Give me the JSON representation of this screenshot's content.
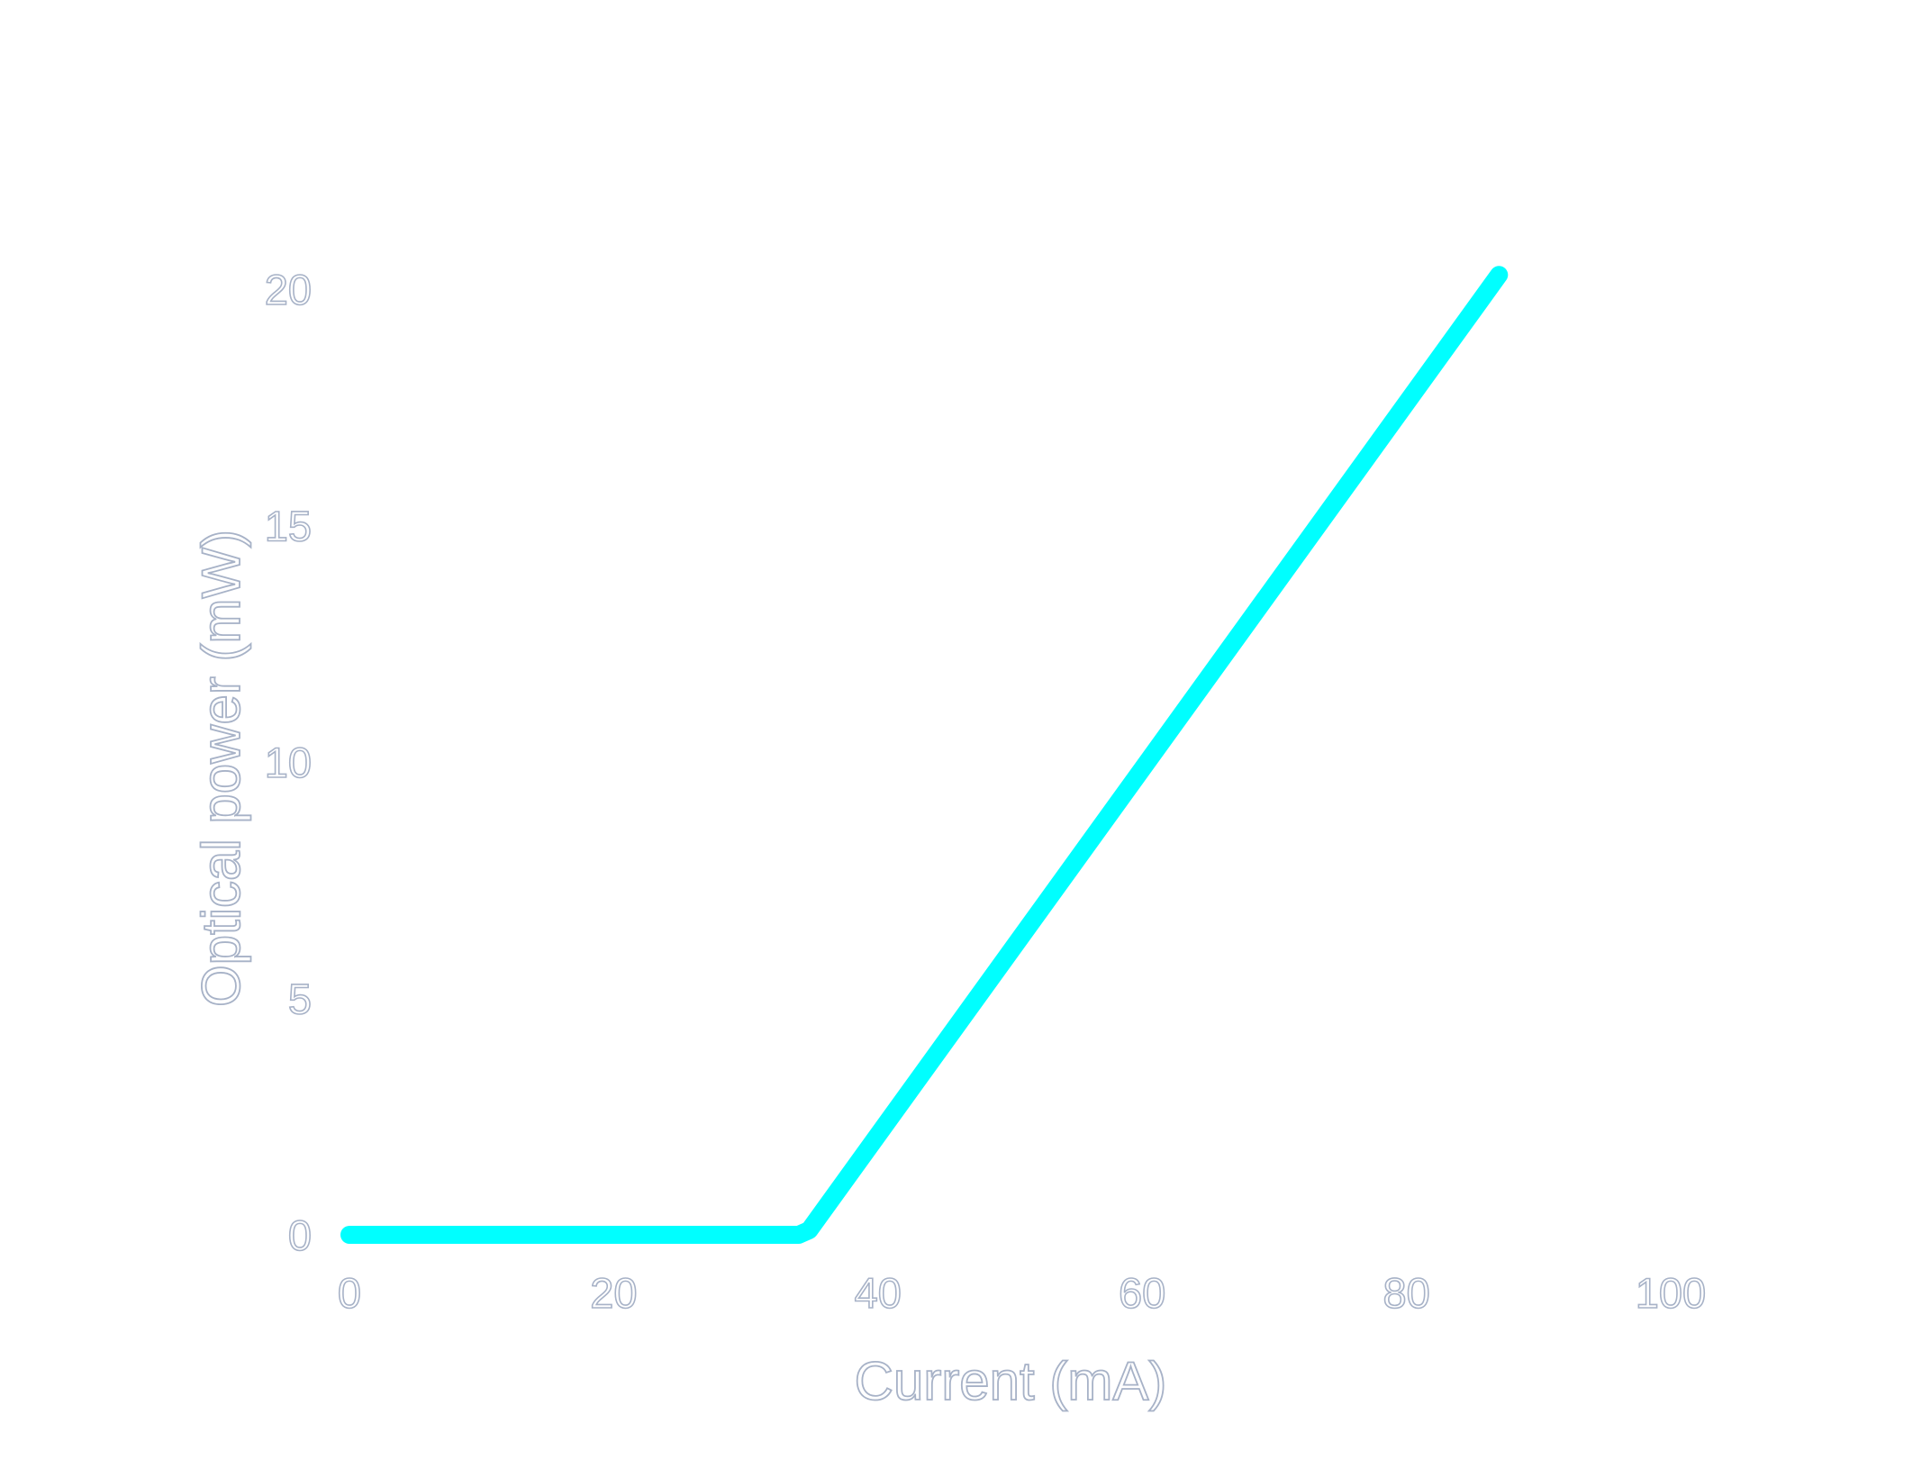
{
  "chart_data": {
    "type": "line",
    "title": "",
    "xlabel": "Current (mA)",
    "ylabel": "Optical power (mW)",
    "xlim": [
      0,
      100
    ],
    "ylim": [
      0,
      20
    ],
    "x_ticks": [
      0,
      20,
      40,
      60,
      80,
      100
    ],
    "y_ticks": [
      0,
      5,
      10,
      15,
      20
    ],
    "grid": false,
    "legend": "none",
    "series": [
      {
        "color": "#00ffff",
        "x": [
          0,
          34,
          34.8,
          87
        ],
        "y": [
          0,
          0,
          0.1,
          20.3
        ]
      }
    ]
  }
}
